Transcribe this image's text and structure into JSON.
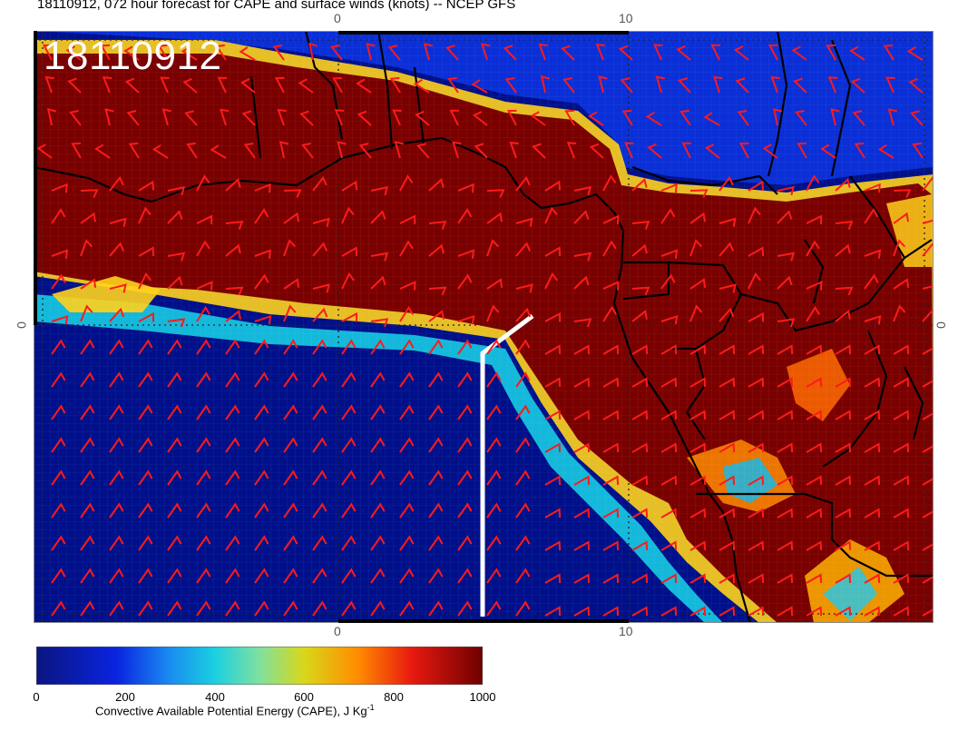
{
  "title": "18110912, 072 hour forecast for CAPE and surface winds (knots) -- NCEP GFS",
  "stamp": "18110912",
  "map": {
    "lon_ticks_top": [
      "0",
      "10"
    ],
    "lon_ticks_bottom": [
      "0",
      "10"
    ],
    "lat_tick_left": "0",
    "lat_tick_right": "0",
    "colors": {
      "cape_high": "#7a0000",
      "cape_low": "#00108a",
      "wind_barbs": "#ff1a1a",
      "coastline": "#000000",
      "cross_section_line": "#ffffff"
    }
  },
  "colorbar": {
    "label": "Convective Available Potential Energy (CAPE), J Kg",
    "label_sup": "-1",
    "ticks": [
      "0",
      "200",
      "400",
      "600",
      "800",
      "1000"
    ],
    "range": [
      0,
      1000
    ]
  }
}
